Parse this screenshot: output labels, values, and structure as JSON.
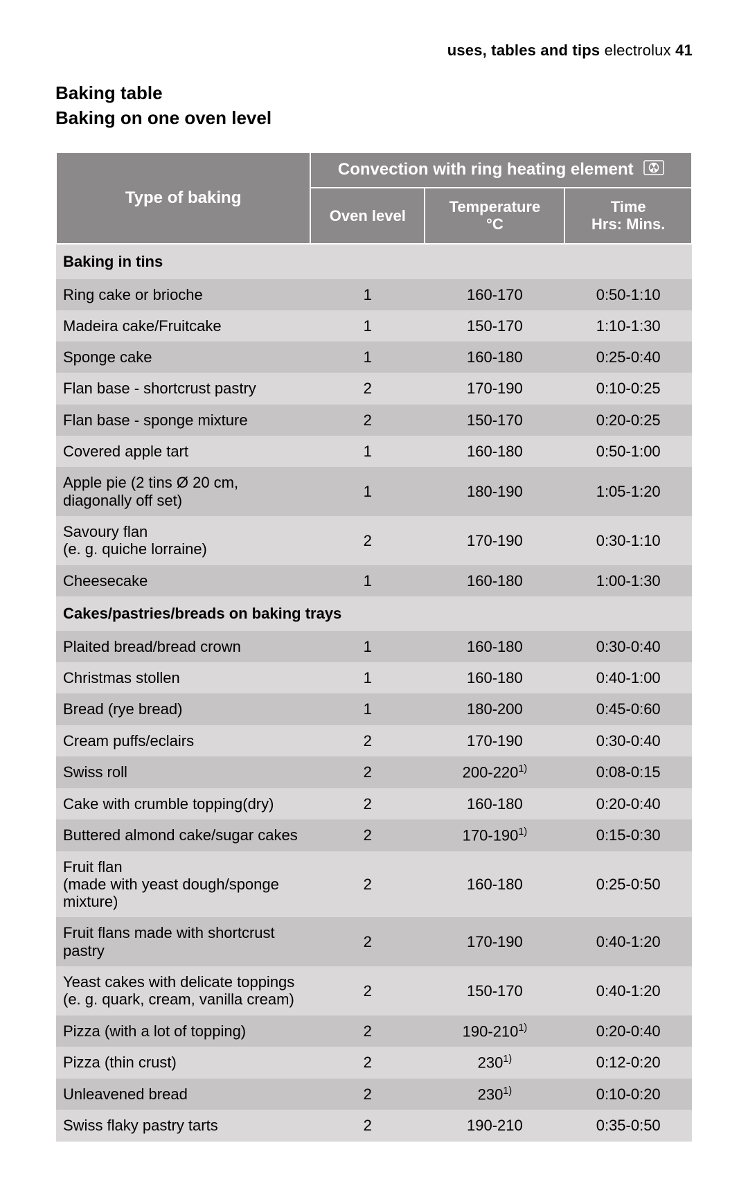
{
  "header": {
    "section_bold": "uses, tables and tips",
    "brand": " electrolux ",
    "page_bold": "41"
  },
  "titles": {
    "line1": "Baking table",
    "line2": "Baking on one oven level"
  },
  "table": {
    "colors": {
      "header_bg": "#8b8989",
      "header_text": "#ffffff",
      "row_dark": "#c6c4c4",
      "row_light": "#dad8d8",
      "border": "#ffffff",
      "text": "#000000"
    },
    "header": {
      "type_of_baking": "Type of baking",
      "convection": "Convection with ring heating element",
      "oven_level": "Oven level",
      "temperature": "Temperature °C",
      "time": "Time Hrs: Mins."
    },
    "sections": [
      {
        "title": "Baking in tins",
        "rows": [
          {
            "name": "Ring cake or brioche",
            "level": "1",
            "temp": "160-170",
            "time": "0:50-1:10"
          },
          {
            "name": "Madeira cake/Fruitcake",
            "level": "1",
            "temp": "150-170",
            "time": "1:10-1:30"
          },
          {
            "name": "Sponge cake",
            "level": "1",
            "temp": "160-180",
            "time": "0:25-0:40"
          },
          {
            "name": "Flan base - shortcrust pastry",
            "level": "2",
            "temp": "170-190",
            "time": "0:10-0:25"
          },
          {
            "name": "Flan base - sponge mixture",
            "level": "2",
            "temp": "150-170",
            "time": "0:20-0:25"
          },
          {
            "name": "Covered apple tart",
            "level": "1",
            "temp": "160-180",
            "time": "0:50-1:00"
          },
          {
            "name": "Apple pie (2 tins Ø 20 cm, diagonally off set)",
            "level": "1",
            "temp": "180-190",
            "time": "1:05-1:20"
          },
          {
            "name": "Savoury flan\n(e. g. quiche lorraine)",
            "level": "2",
            "temp": "170-190",
            "time": "0:30-1:10"
          },
          {
            "name": "Cheesecake",
            "level": "1",
            "temp": "160-180",
            "time": "1:00-1:30"
          }
        ]
      },
      {
        "title": "Cakes/pastries/breads on baking trays",
        "rows": [
          {
            "name": "Plaited bread/bread crown",
            "level": "1",
            "temp": "160-180",
            "time": "0:30-0:40"
          },
          {
            "name": "Christmas stollen",
            "level": "1",
            "temp": "160-180",
            "time": "0:40-1:00"
          },
          {
            "name": "Bread (rye bread)",
            "level": "1",
            "temp": "180-200",
            "time": "0:45-0:60"
          },
          {
            "name": "Cream puffs/eclairs",
            "level": "2",
            "temp": "170-190",
            "time": "0:30-0:40"
          },
          {
            "name": "Swiss roll",
            "level": "2",
            "temp": "200-220",
            "temp_sup": "1)",
            "time": "0:08-0:15"
          },
          {
            "name": "Cake with crumble topping(dry)",
            "level": "2",
            "temp": "160-180",
            "time": "0:20-0:40"
          },
          {
            "name": "Buttered almond cake/sugar cakes",
            "level": "2",
            "temp": "170-190",
            "temp_sup": "1)",
            "time": "0:15-0:30"
          },
          {
            "name": "Fruit flan\n(made with yeast dough/sponge mixture)",
            "level": "2",
            "temp": "160-180",
            "time": "0:25-0:50"
          },
          {
            "name": "Fruit flans made with shortcrust pastry",
            "level": "2",
            "temp": "170-190",
            "time": "0:40-1:20"
          },
          {
            "name": "Yeast cakes with delicate toppings\n(e. g. quark, cream, vanilla cream)",
            "level": "2",
            "temp": "150-170",
            "time": "0:40-1:20"
          },
          {
            "name": "Pizza (with a lot of topping)",
            "level": "2",
            "temp": "190-210",
            "temp_sup": "1)",
            "time": "0:20-0:40"
          },
          {
            "name": "Pizza (thin crust)",
            "level": "2",
            "temp": "230",
            "temp_sup": "1)",
            "time": "0:12-0:20"
          },
          {
            "name": "Unleavened bread",
            "level": "2",
            "temp": "230",
            "temp_sup": "1)",
            "time": "0:10-0:20"
          },
          {
            "name": "Swiss flaky pastry tarts",
            "level": "2",
            "temp": "190-210",
            "time": "0:35-0:50"
          }
        ]
      }
    ]
  }
}
